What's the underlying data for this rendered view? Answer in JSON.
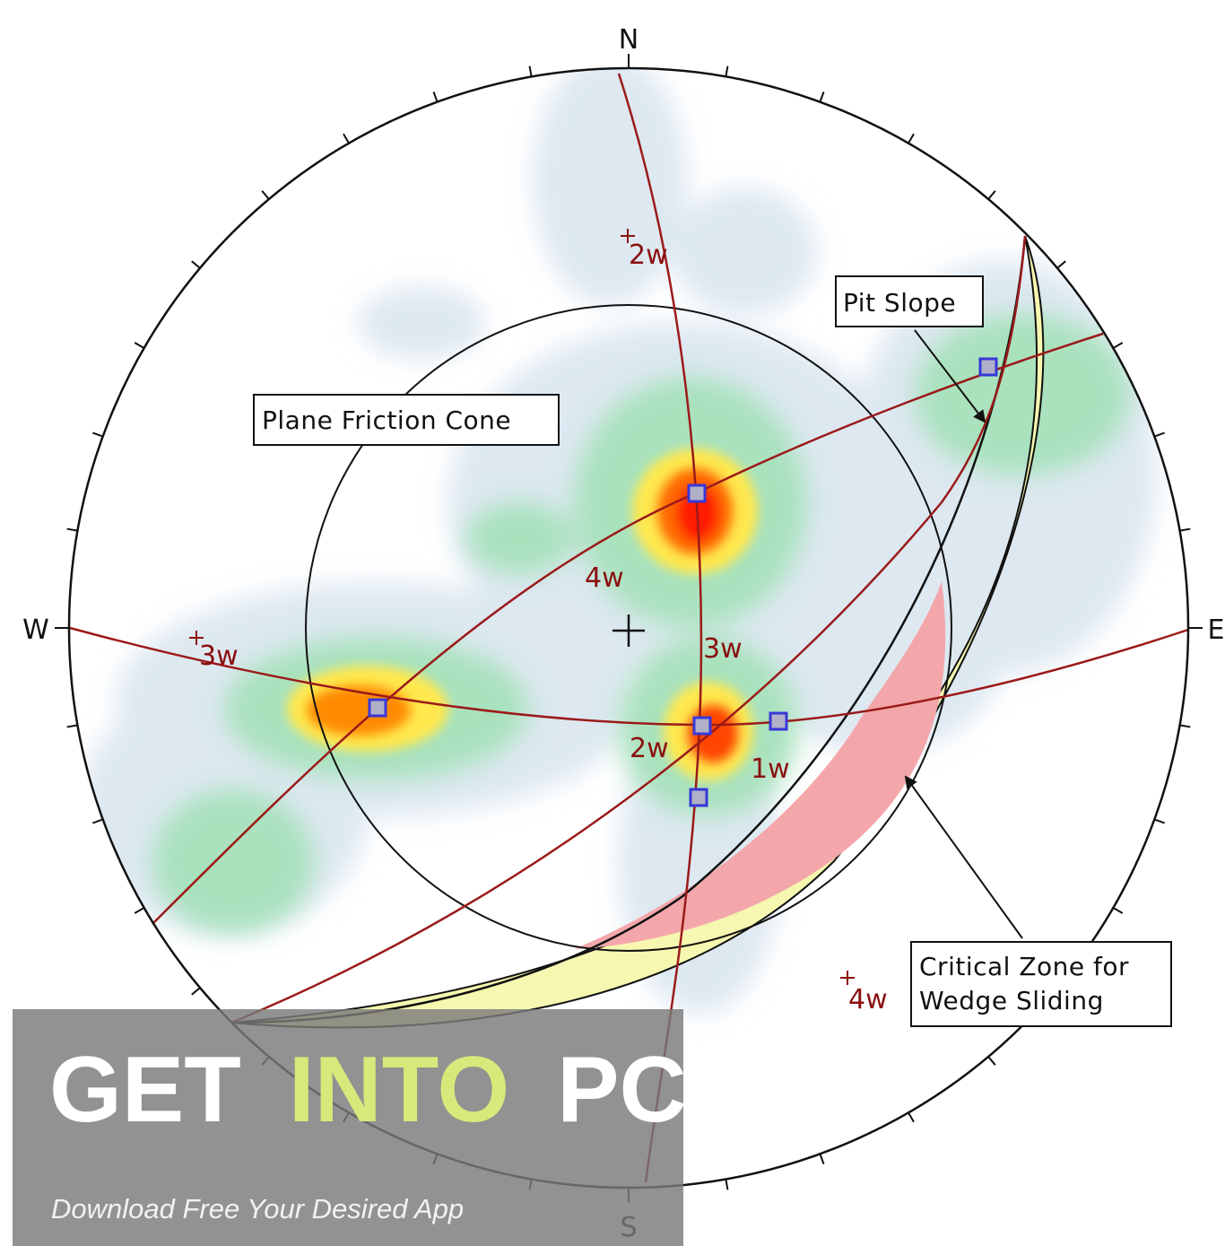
{
  "compass": {
    "north": "N",
    "south": "S",
    "east": "E",
    "west": "W"
  },
  "callouts": {
    "plane_friction_cone": "Plane Friction Cone",
    "pit_slope": "Pit Slope",
    "critical_zone_line1": "Critical Zone for",
    "critical_zone_line2": "Wedge Sliding"
  },
  "pole_labels": {
    "pole_2w": "2w",
    "pole_3w": "3w",
    "pole_4w": "4w"
  },
  "plane_labels": {
    "plane_1w": "1w",
    "plane_2w": "2w",
    "plane_3w": "3w",
    "plane_4w": "4w"
  },
  "watermark": {
    "word1": "GET",
    "word2": "INTO",
    "word3": "PC",
    "subtitle": "Download Free Your Desired App",
    "colors": {
      "word_white": "#ffffff",
      "word_accent": "#d8e87a",
      "band": "#7a7a7a"
    }
  },
  "colors": {
    "great_circle": "#9b1a1a",
    "critical_zone": "#f4a7ab",
    "pit_slope_band": "#f6f7b0",
    "contour_low": "#dce9f2",
    "contour_mid": "#88d8a0",
    "contour_high": "#ffe64d",
    "contour_peak": "#ff1a00",
    "intersection_marker": "#3838d8"
  }
}
